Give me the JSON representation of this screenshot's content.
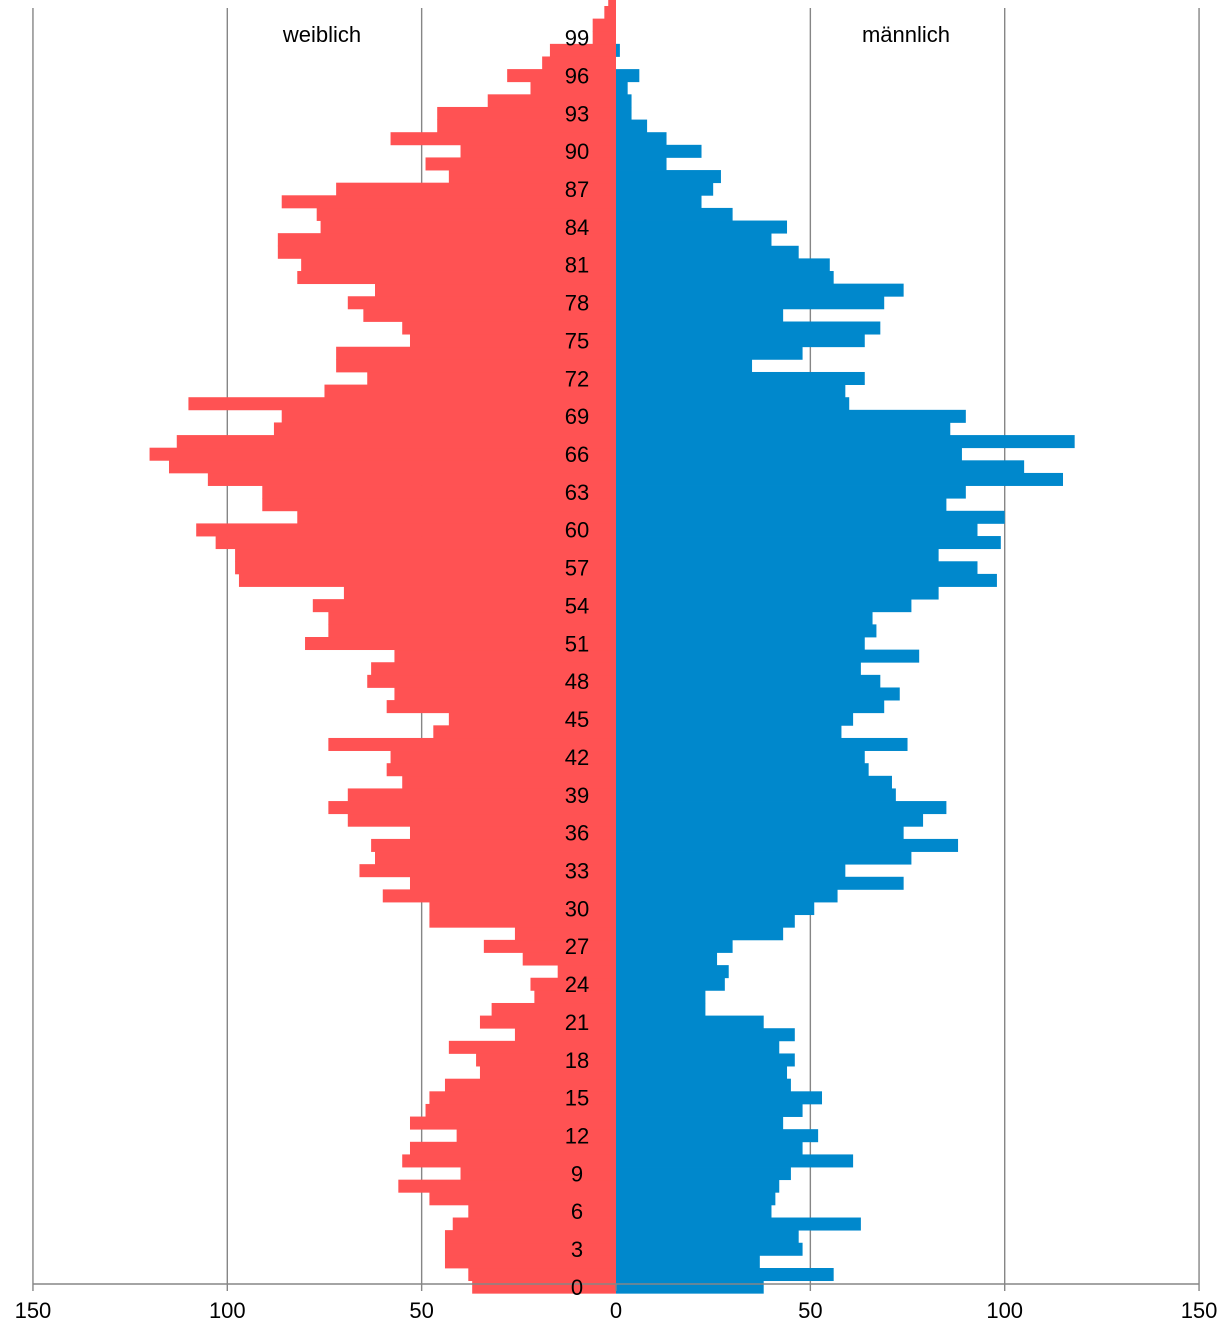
{
  "chart_data": {
    "type": "bar",
    "orientation": "horizontal",
    "layout": "population-pyramid",
    "series": [
      {
        "name": "weiblich",
        "side": "left",
        "color": "#ff5253",
        "values": [
          37,
          38,
          44,
          44,
          44,
          42,
          38,
          48,
          56,
          40,
          55,
          53,
          41,
          53,
          49,
          48,
          44,
          35,
          36,
          43,
          26,
          35,
          32,
          21,
          22,
          15,
          24,
          34,
          26,
          48,
          48,
          60,
          53,
          66,
          62,
          63,
          53,
          69,
          74,
          69,
          55,
          59,
          58,
          74,
          47,
          43,
          59,
          57,
          64,
          63,
          57,
          80,
          74,
          74,
          78,
          70,
          97,
          98,
          98,
          103,
          108,
          82,
          91,
          91,
          105,
          115,
          120,
          113,
          88,
          86,
          110,
          75,
          64,
          72,
          72,
          53,
          55,
          65,
          69,
          62,
          82,
          81,
          87,
          87,
          76,
          77,
          86,
          72,
          43,
          49,
          40,
          58,
          46,
          46,
          33,
          22,
          28,
          19,
          17,
          6,
          6,
          3,
          2
        ]
      },
      {
        "name": "männlich",
        "side": "right",
        "color": "#0088cc",
        "values": [
          38,
          56,
          37,
          48,
          47,
          63,
          40,
          41,
          42,
          45,
          61,
          48,
          52,
          43,
          48,
          53,
          45,
          44,
          46,
          42,
          46,
          38,
          23,
          23,
          28,
          29,
          26,
          30,
          43,
          46,
          51,
          57,
          74,
          59,
          76,
          88,
          74,
          79,
          85,
          72,
          71,
          65,
          64,
          75,
          58,
          61,
          69,
          73,
          68,
          63,
          78,
          64,
          67,
          66,
          76,
          83,
          98,
          93,
          83,
          99,
          93,
          100,
          85,
          90,
          115,
          105,
          89,
          118,
          86,
          90,
          60,
          59,
          64,
          35,
          48,
          64,
          68,
          43,
          69,
          74,
          56,
          55,
          47,
          40,
          44,
          30,
          22,
          25,
          27,
          13,
          22,
          13,
          8,
          4,
          4,
          3,
          6,
          0,
          1,
          0,
          0,
          0,
          0
        ]
      }
    ],
    "age_ticks": [
      99,
      96,
      93,
      90,
      87,
      84,
      81,
      78,
      75,
      72,
      69,
      66,
      63,
      60,
      57,
      54,
      51,
      48,
      45,
      42,
      39,
      36,
      33,
      30,
      27,
      24,
      21,
      18,
      15,
      12,
      9,
      6,
      3,
      0
    ],
    "x_ticks": [
      150,
      100,
      50,
      0,
      50,
      100,
      150
    ],
    "xlim": [
      -150,
      150
    ],
    "ylim": [
      0,
      102
    ],
    "grid": "vertical",
    "gridline_color": "#868686"
  }
}
